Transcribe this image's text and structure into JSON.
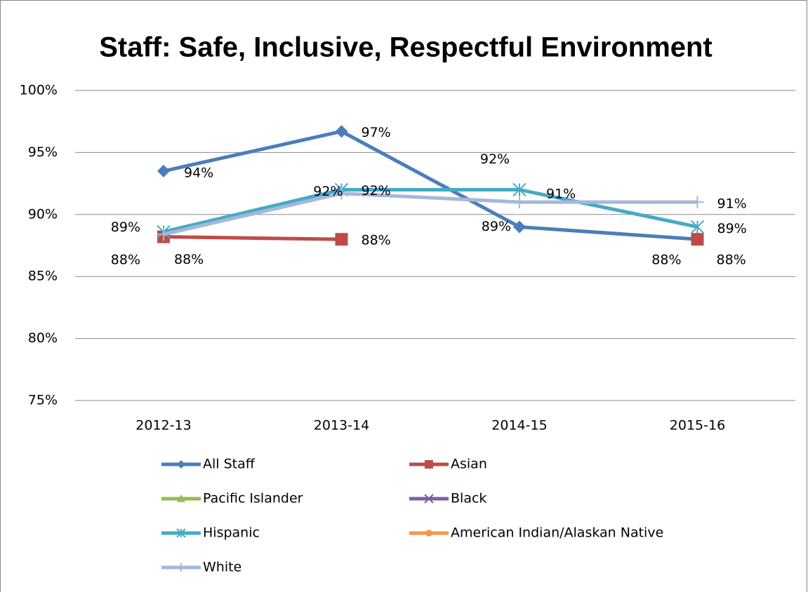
{
  "chart_data": {
    "type": "line",
    "title": "Staff: Safe, Inclusive, Respectful Environment",
    "categories": [
      "2012-13",
      "2013-14",
      "2014-15",
      "2015-16"
    ],
    "ylim": [
      75,
      100
    ],
    "yticks": [
      {
        "value": 75,
        "label": "75%"
      },
      {
        "value": 80,
        "label": "80%"
      },
      {
        "value": 85,
        "label": "85%"
      },
      {
        "value": 90,
        "label": "90%"
      },
      {
        "value": 95,
        "label": "95%"
      },
      {
        "value": 100,
        "label": "100%"
      }
    ],
    "grid": true,
    "legend": "bottom",
    "series": [
      {
        "name": "All Staff",
        "color": "#4a7ebb",
        "marker": "diamond",
        "values": [
          93.5,
          96.7,
          89,
          88
        ],
        "value_labels": [
          "94%",
          "97%",
          "89%",
          "88%"
        ]
      },
      {
        "name": "Asian",
        "color": "#be4b48",
        "marker": "square",
        "values": [
          88.2,
          88,
          null,
          88
        ],
        "value_labels": [
          "88%",
          "88%",
          null,
          "88%"
        ]
      },
      {
        "name": "Pacific Islander",
        "color": "#98b954",
        "marker": "triangle",
        "values": [
          null,
          null,
          null,
          null
        ],
        "value_labels": [
          null,
          null,
          null,
          null
        ]
      },
      {
        "name": "Black",
        "color": "#7d60a0",
        "marker": "x",
        "values": [
          null,
          null,
          null,
          null
        ],
        "value_labels": [
          null,
          null,
          null,
          null
        ]
      },
      {
        "name": "Hispanic",
        "color": "#46aac5",
        "marker": "star",
        "values": [
          88.6,
          92,
          92,
          89
        ],
        "value_labels": [
          "89%",
          "92%",
          "92%",
          "89%"
        ]
      },
      {
        "name": "American Indian/Alaskan Native",
        "color": "#f79646",
        "marker": "circle",
        "values": [
          null,
          null,
          null,
          null
        ],
        "value_labels": [
          null,
          null,
          null,
          null
        ]
      },
      {
        "name": "White",
        "color": "#a5b8db",
        "marker": "plus",
        "values": [
          88.4,
          91.7,
          91,
          91
        ],
        "value_labels": [
          "88%",
          "92%",
          "91%",
          "91%"
        ]
      }
    ]
  }
}
